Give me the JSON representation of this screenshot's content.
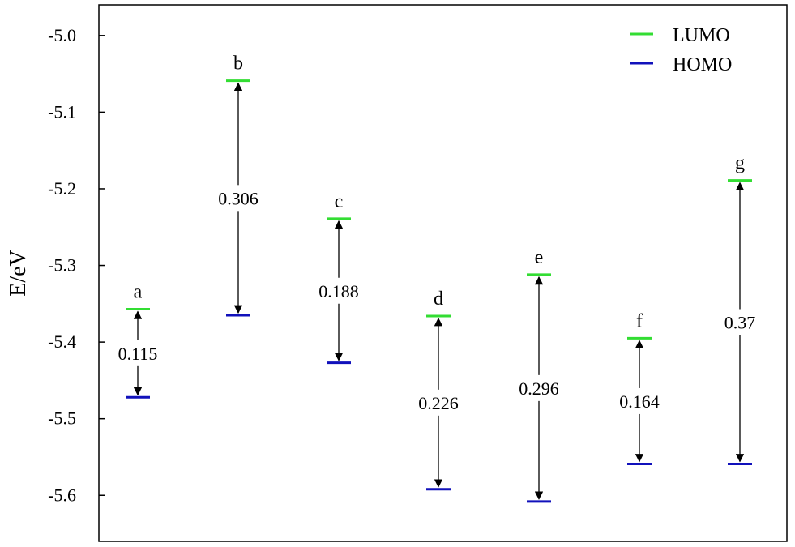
{
  "chart_data": {
    "type": "energy-level",
    "ylabel": "E/eV",
    "ylim": [
      -5.66,
      -4.96
    ],
    "yticks": [
      -5.0,
      -5.1,
      -5.2,
      -5.3,
      -5.4,
      -5.5,
      -5.6
    ],
    "ytick_labels": [
      "-5.0",
      "-5.1",
      "-5.2",
      "-5.3",
      "-5.4",
      "-5.5",
      "-5.6"
    ],
    "grid": false,
    "legend": {
      "placement": "top-right",
      "items": [
        {
          "name": "LUMO",
          "color": "#33dd33"
        },
        {
          "name": "HOMO",
          "color": "#1111bb"
        }
      ]
    },
    "levels": [
      {
        "label": "a",
        "lumo": -5.357,
        "homo": -5.472,
        "gap": "0.115"
      },
      {
        "label": "b",
        "lumo": -5.059,
        "homo": -5.365,
        "gap": "0.306"
      },
      {
        "label": "c",
        "lumo": -5.239,
        "homo": -5.427,
        "gap": "0.188"
      },
      {
        "label": "d",
        "lumo": -5.366,
        "homo": -5.592,
        "gap": "0.226"
      },
      {
        "label": "e",
        "lumo": -5.312,
        "homo": -5.608,
        "gap": "0.296"
      },
      {
        "label": "f",
        "lumo": -5.395,
        "homo": -5.559,
        "gap": "0.164"
      },
      {
        "label": "g",
        "lumo": -5.189,
        "homo": -5.559,
        "gap": "0.37"
      }
    ]
  }
}
